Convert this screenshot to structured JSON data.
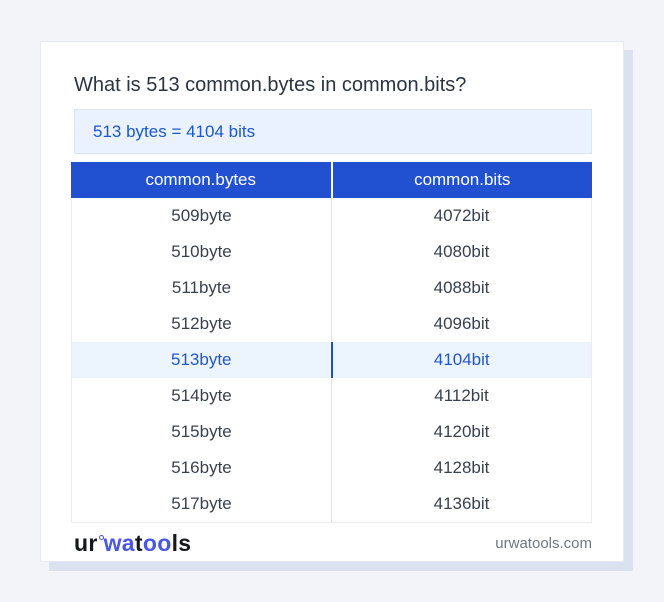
{
  "page": {
    "question": "What is 513 common.bytes in common.bits?"
  },
  "result": {
    "text": "513 bytes = 4104 bits"
  },
  "table": {
    "headers": [
      "common.bytes",
      "common.bits"
    ],
    "rows": [
      {
        "bytes": "509byte",
        "bits": "4072bit"
      },
      {
        "bytes": "510byte",
        "bits": "4080bit"
      },
      {
        "bytes": "511byte",
        "bits": "4088bit"
      },
      {
        "bytes": "512byte",
        "bits": "4096bit"
      },
      {
        "bytes": "513byte",
        "bits": "4104bit"
      },
      {
        "bytes": "514byte",
        "bits": "4112bit"
      },
      {
        "bytes": "515byte",
        "bits": "4120bit"
      },
      {
        "bytes": "516byte",
        "bits": "4128bit"
      },
      {
        "bytes": "517byte",
        "bits": "4136bit"
      }
    ],
    "highlighted_row_index": 4
  },
  "footer": {
    "logo": {
      "part_ur": "ur",
      "part_wa": "wa",
      "part_t": "t",
      "part_oo": "oo",
      "part_ls": "ls"
    },
    "domain": "urwatools.com"
  },
  "colors": {
    "page_background": "#f2f4f9",
    "card_background": "#ffffff",
    "card_shadow": "#dbe2ef",
    "header_blue": "#2151d1",
    "result_box_background": "#e9f2fe",
    "accent_text_blue": "#1d57c9",
    "highlight_row_background": "#ecf4fe",
    "highlight_divider_blue": "#1e55ab",
    "body_text": "#3a414e",
    "logo_blue": "#4a57e3",
    "muted_text": "#6f7684"
  }
}
